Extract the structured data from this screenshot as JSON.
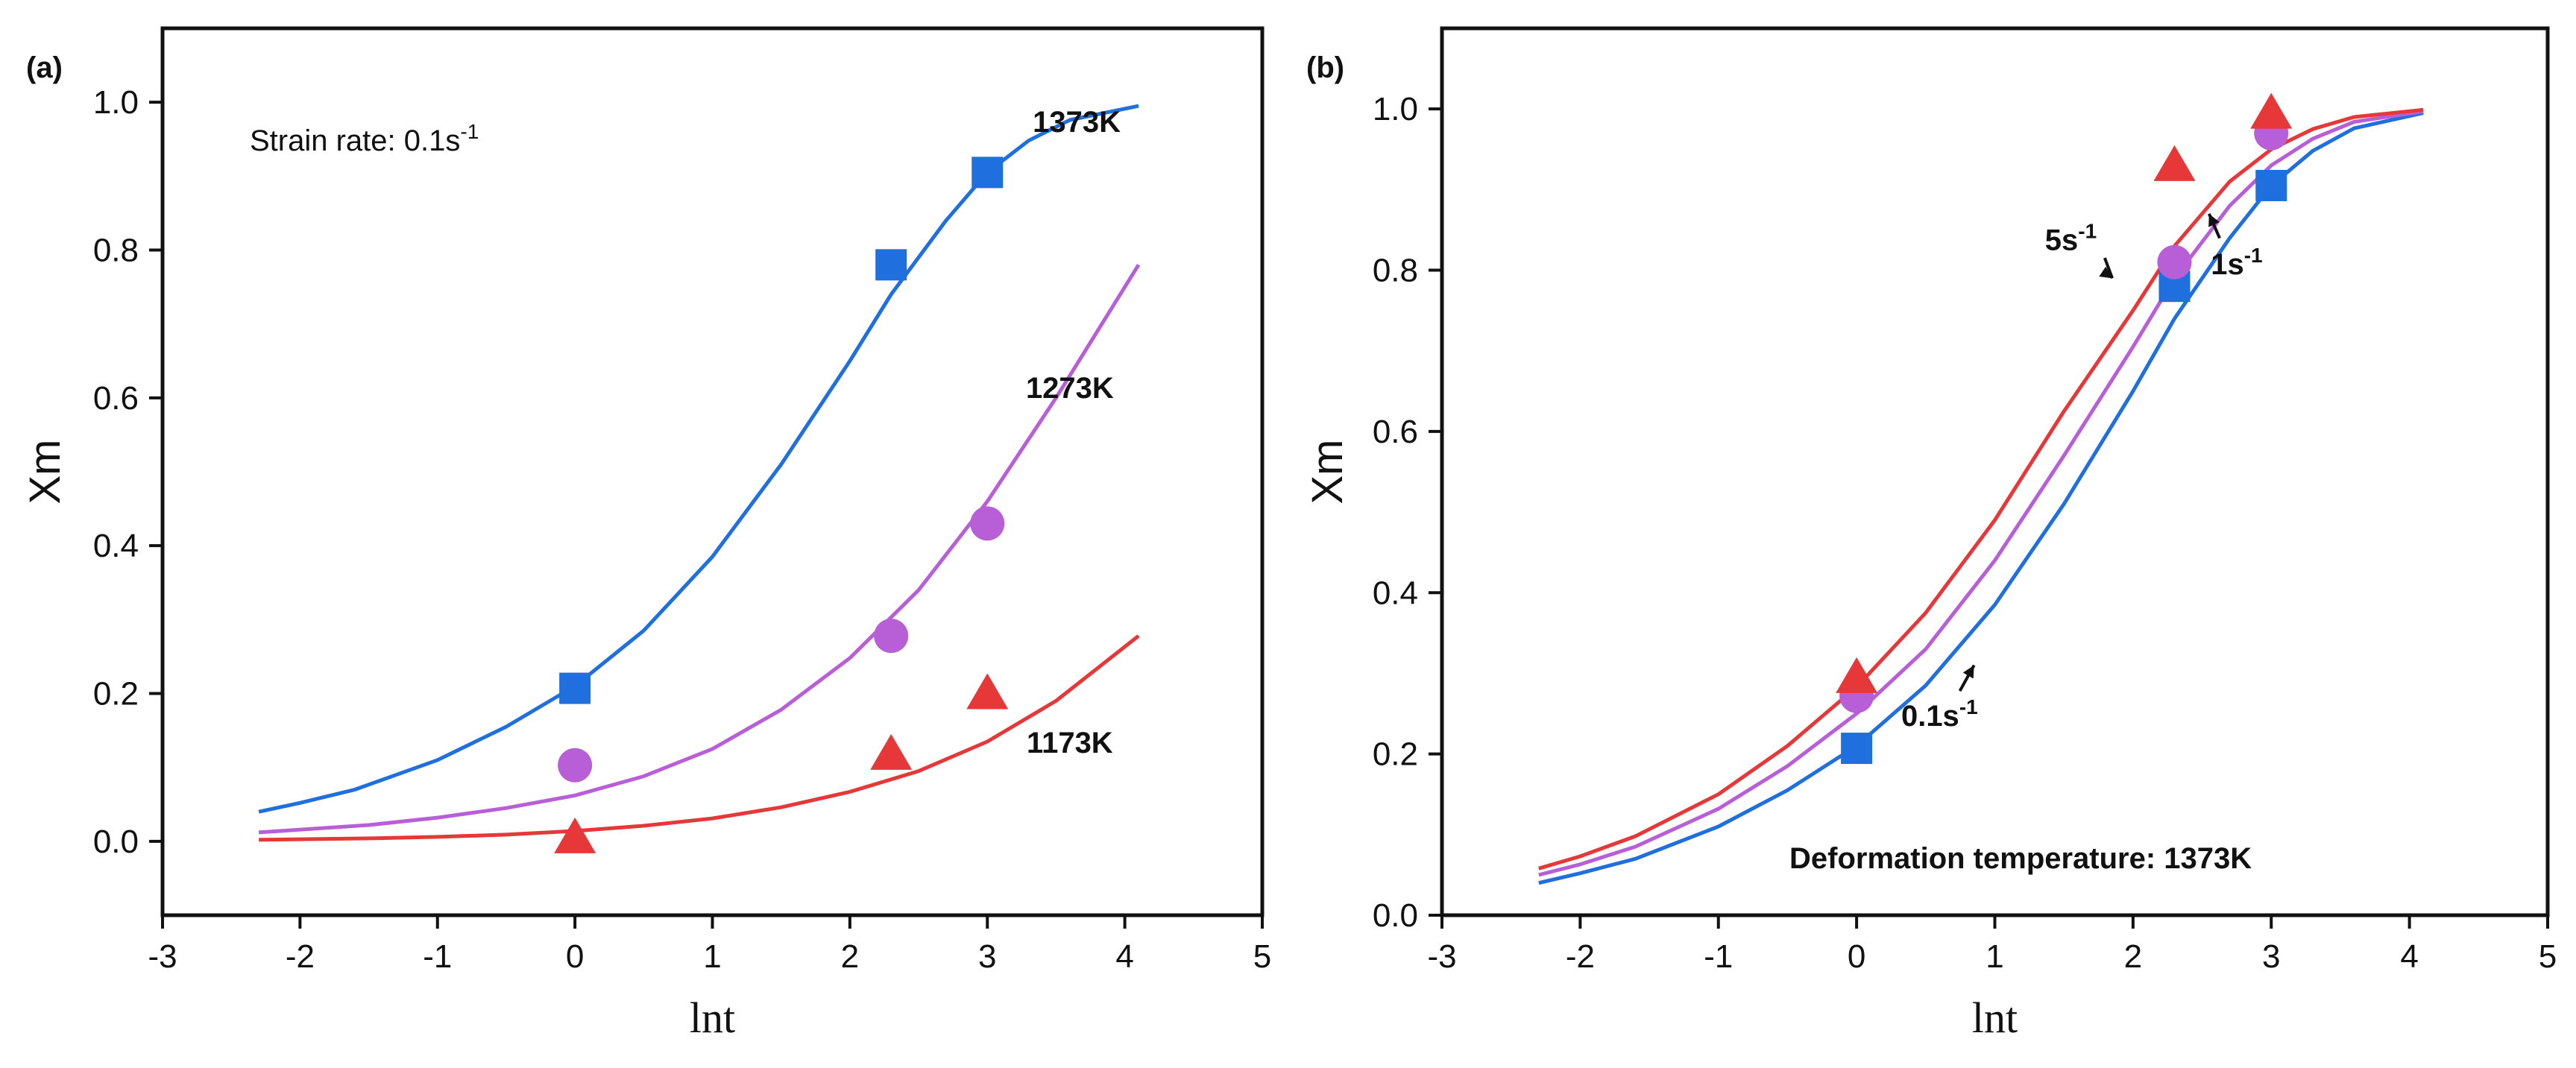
{
  "chart_data": [
    {
      "panel": "(a)",
      "type": "line",
      "xlabel": "lnt",
      "ylabel": "Xm",
      "xlim": [
        -3,
        5
      ],
      "ylim": [
        -0.1,
        1.1
      ],
      "xticks": [
        "-3",
        "-2",
        "-1",
        "0",
        "1",
        "2",
        "3",
        "4",
        "5"
      ],
      "yticks": [
        "0.0",
        "0.2",
        "0.4",
        "0.6",
        "0.8",
        "1.0"
      ],
      "annotation": {
        "main": "Strain rate: 0.1s",
        "sup": "-1"
      },
      "series": [
        {
          "name": "1373K",
          "color": "#1f6fde",
          "marker": "square",
          "curve": {
            "x": [
              -2.3,
              -2.0,
              -1.6,
              -1.0,
              -0.5,
              0.0,
              0.5,
              1.0,
              1.5,
              2.0,
              2.3,
              2.7,
              3.0,
              3.3,
              3.6,
              4.1
            ],
            "y": [
              0.04,
              0.052,
              0.07,
              0.11,
              0.155,
              0.21,
              0.285,
              0.385,
              0.51,
              0.65,
              0.74,
              0.84,
              0.905,
              0.948,
              0.976,
              0.995
            ]
          },
          "points": {
            "x": [
              0,
              2.3,
              3.0
            ],
            "y": [
              0.207,
              0.78,
              0.905
            ]
          }
        },
        {
          "name": "1273K",
          "color": "#b85fd8",
          "marker": "circle",
          "curve": {
            "x": [
              -2.3,
              -1.5,
              -1.0,
              -0.5,
              0.0,
              0.5,
              1.0,
              1.5,
              2.0,
              2.5,
              3.0,
              3.5,
              4.1
            ],
            "y": [
              0.012,
              0.022,
              0.032,
              0.045,
              0.062,
              0.088,
              0.125,
              0.178,
              0.248,
              0.34,
              0.46,
              0.6,
              0.78
            ]
          },
          "points": {
            "x": [
              0,
              2.3,
              3.0
            ],
            "y": [
              0.103,
              0.278,
              0.43
            ]
          }
        },
        {
          "name": "1173K",
          "color": "#e63838",
          "marker": "triangle",
          "curve": {
            "x": [
              -2.3,
              -1.5,
              -1.0,
              -0.5,
              0.0,
              0.5,
              1.0,
              1.5,
              2.0,
              2.5,
              3.0,
              3.5,
              4.1
            ],
            "y": [
              0.002,
              0.004,
              0.006,
              0.009,
              0.014,
              0.021,
              0.031,
              0.046,
              0.067,
              0.095,
              0.135,
              0.19,
              0.278
            ]
          },
          "points": {
            "x": [
              0,
              2.3,
              3.0
            ],
            "y": [
              0.005,
              0.118,
              0.2
            ]
          }
        }
      ],
      "labels": [
        {
          "text": "1373K",
          "x": 3.65,
          "y": 0.96
        },
        {
          "text": "1273K",
          "x": 3.6,
          "y": 0.6
        },
        {
          "text": "1173K",
          "x": 3.6,
          "y": 0.12
        }
      ]
    },
    {
      "panel": "(b)",
      "type": "line",
      "xlabel": "lnt",
      "ylabel": "Xm",
      "xlim": [
        -3,
        5
      ],
      "ylim": [
        0.0,
        1.1
      ],
      "xticks": [
        "-3",
        "-2",
        "-1",
        "0",
        "1",
        "2",
        "3",
        "4",
        "5"
      ],
      "yticks": [
        "0.0",
        "0.2",
        "0.4",
        "0.6",
        "0.8",
        "1.0"
      ],
      "annotation": {
        "main": "Deformation temperature: 1373K",
        "sup": ""
      },
      "series": [
        {
          "name": "0.1s-1",
          "color": "#1f6fde",
          "marker": "square",
          "curve": {
            "x": [
              -2.3,
              -2.0,
              -1.6,
              -1.0,
              -0.5,
              0.0,
              0.5,
              1.0,
              1.5,
              2.0,
              2.3,
              2.7,
              3.0,
              3.3,
              3.6,
              4.1
            ],
            "y": [
              0.04,
              0.052,
              0.07,
              0.11,
              0.155,
              0.21,
              0.285,
              0.385,
              0.51,
              0.65,
              0.74,
              0.84,
              0.905,
              0.948,
              0.976,
              0.995
            ]
          },
          "points": {
            "x": [
              0,
              2.3,
              3.0
            ],
            "y": [
              0.207,
              0.78,
              0.905
            ]
          }
        },
        {
          "name": "1s-1",
          "color": "#b85fd8",
          "marker": "circle",
          "curve": {
            "x": [
              -2.3,
              -2.0,
              -1.6,
              -1.0,
              -0.5,
              0.0,
              0.5,
              1.0,
              1.5,
              2.0,
              2.3,
              2.7,
              3.0,
              3.3,
              3.6,
              4.1
            ],
            "y": [
              0.05,
              0.063,
              0.085,
              0.132,
              0.185,
              0.25,
              0.33,
              0.44,
              0.57,
              0.705,
              0.79,
              0.88,
              0.93,
              0.963,
              0.984,
              0.997
            ]
          },
          "points": {
            "x": [
              0,
              2.3,
              3.0
            ],
            "y": [
              0.272,
              0.81,
              0.97
            ]
          }
        },
        {
          "name": "5s-1",
          "color": "#e63838",
          "marker": "triangle",
          "curve": {
            "x": [
              -2.3,
              -2.0,
              -1.6,
              -1.0,
              -0.5,
              0.0,
              0.5,
              1.0,
              1.5,
              2.0,
              2.3,
              2.7,
              3.0,
              3.3,
              3.6,
              4.1
            ],
            "y": [
              0.058,
              0.073,
              0.098,
              0.15,
              0.21,
              0.283,
              0.375,
              0.49,
              0.625,
              0.75,
              0.83,
              0.91,
              0.95,
              0.975,
              0.99,
              0.999
            ]
          },
          "points": {
            "x": [
              0,
              2.3,
              3.0
            ],
            "y": [
              0.295,
              0.93,
              0.995
            ]
          }
        }
      ],
      "labels": [
        {
          "text": "5s",
          "sup": "-1",
          "x": 1.55,
          "y": 0.825,
          "arrow_to": [
            1.85,
            0.79
          ]
        },
        {
          "text": "1s",
          "sup": "-1",
          "x": 2.75,
          "y": 0.795,
          "arrow_to": [
            2.55,
            0.87
          ]
        },
        {
          "text": "0.1s",
          "sup": "-1",
          "x": 0.6,
          "y": 0.235,
          "arrow_to": [
            0.85,
            0.31
          ]
        }
      ]
    }
  ]
}
